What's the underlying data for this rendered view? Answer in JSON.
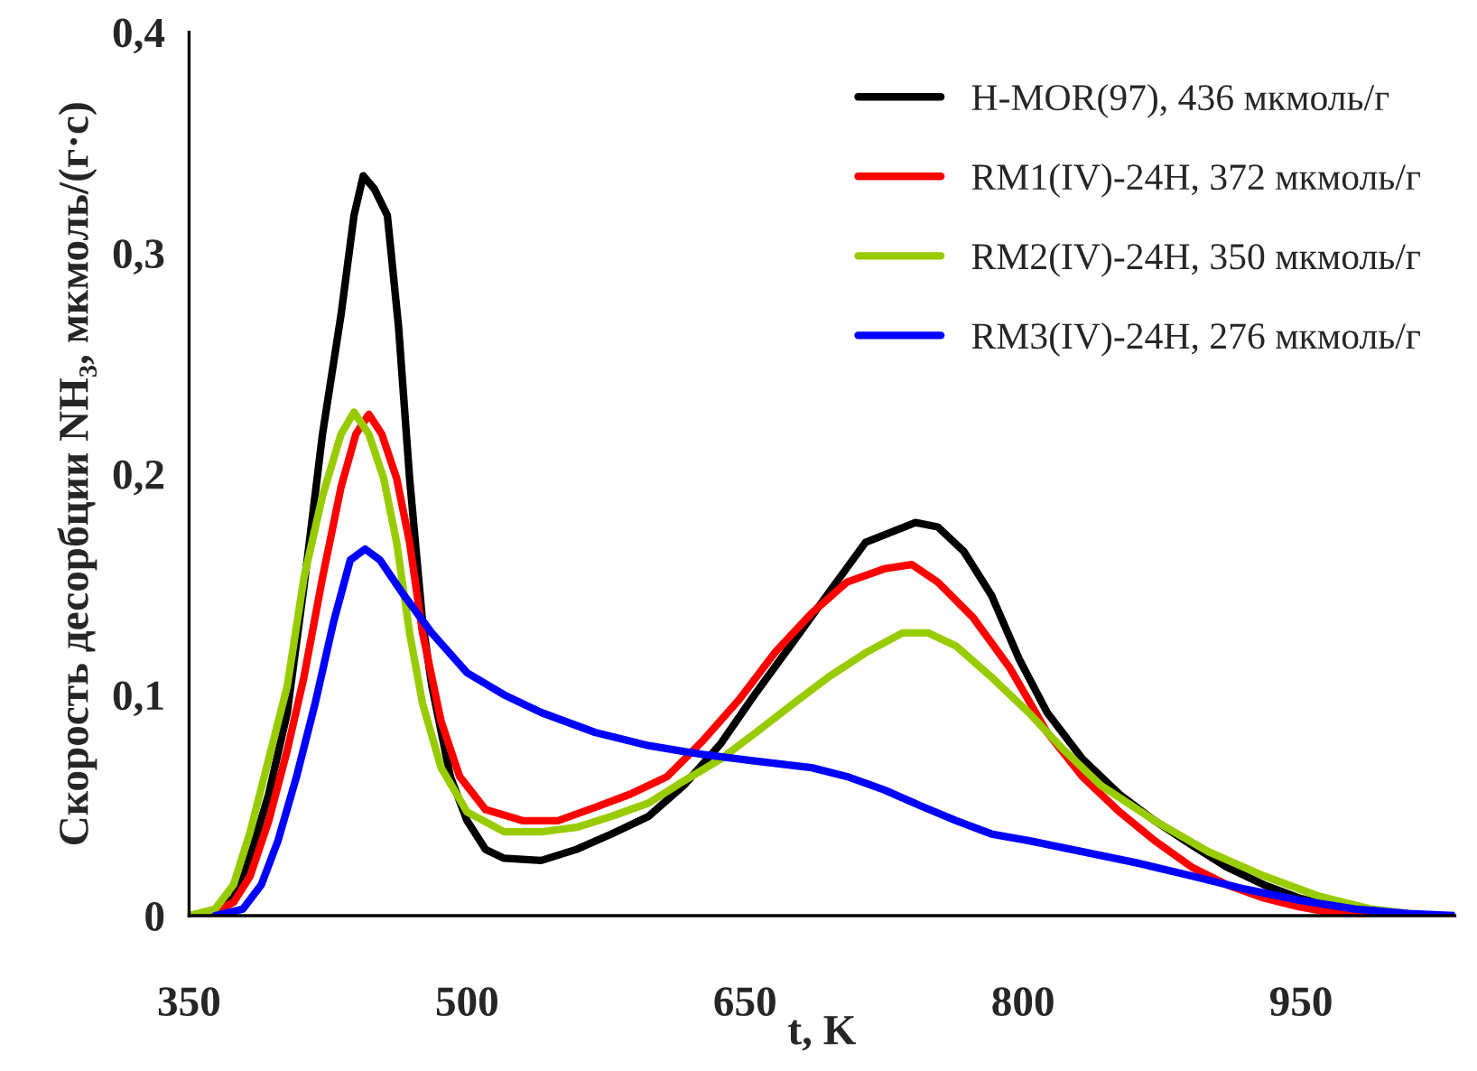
{
  "chart_data": {
    "type": "line",
    "xlabel": "t, K",
    "ylabel": "Скорость десорбции NH₃, мкмоль/(г·с)",
    "xlim": [
      350,
      1033
    ],
    "ylim": [
      0,
      0.4
    ],
    "xticks": [
      350,
      500,
      650,
      800,
      950
    ],
    "yticks": [
      {
        "value": 0,
        "label": "0"
      },
      {
        "value": 0.1,
        "label": "0,1"
      },
      {
        "value": 0.2,
        "label": "0,2"
      },
      {
        "value": 0.3,
        "label": "0,3"
      },
      {
        "value": 0.4,
        "label": "0,4"
      }
    ],
    "grid": false,
    "legend": "top right",
    "marker": "none",
    "line_style": "solid",
    "series": [
      {
        "name": "H-MOR(97), 436 мкмоль/г",
        "color": "#000000",
        "x": [
          350,
          364,
          374,
          383,
          393,
          403,
          412,
          422,
          432,
          439,
          444,
          450,
          457,
          463,
          469,
          476,
          481,
          491,
          500,
          510,
          520,
          540,
          559,
          578,
          598,
          617,
          637,
          656,
          676,
          695,
          715,
          742,
          754,
          768,
          783,
          798,
          813,
          832,
          852,
          871,
          891,
          910,
          930,
          949,
          969,
          988,
          1008
        ],
        "values": [
          0,
          0.002,
          0.008,
          0.027,
          0.055,
          0.092,
          0.149,
          0.218,
          0.272,
          0.317,
          0.335,
          0.329,
          0.317,
          0.267,
          0.198,
          0.133,
          0.104,
          0.063,
          0.043,
          0.03,
          0.026,
          0.025,
          0.03,
          0.037,
          0.045,
          0.059,
          0.078,
          0.101,
          0.124,
          0.146,
          0.169,
          0.178,
          0.176,
          0.165,
          0.145,
          0.116,
          0.092,
          0.071,
          0.055,
          0.043,
          0.032,
          0.022,
          0.014,
          0.008,
          0.004,
          0.001,
          0
        ]
      },
      {
        "name": "RM1(IV)-24H, 372 мкмоль/г",
        "color": "#ff0000",
        "x": [
          359,
          374,
          383,
          393,
          403,
          412,
          422,
          432,
          440,
          447,
          454,
          462,
          469,
          476,
          486,
          496,
          510,
          530,
          549,
          569,
          588,
          608,
          627,
          647,
          666,
          686,
          705,
          725,
          740,
          754,
          773,
          793,
          813,
          832,
          852,
          871,
          891,
          910,
          930,
          949,
          969,
          988
        ],
        "values": [
          0,
          0.006,
          0.018,
          0.043,
          0.075,
          0.108,
          0.153,
          0.194,
          0.218,
          0.227,
          0.218,
          0.198,
          0.169,
          0.128,
          0.088,
          0.063,
          0.048,
          0.043,
          0.043,
          0.049,
          0.055,
          0.063,
          0.079,
          0.098,
          0.119,
          0.137,
          0.151,
          0.157,
          0.159,
          0.151,
          0.135,
          0.112,
          0.083,
          0.063,
          0.047,
          0.034,
          0.022,
          0.014,
          0.008,
          0.004,
          0.001,
          0
        ]
      },
      {
        "name": "RM2(IV)-24H, 350 мкмоль/г",
        "color": "#99cc00",
        "x": [
          350,
          364,
          374,
          383,
          393,
          403,
          412,
          422,
          432,
          439,
          447,
          455,
          462,
          469,
          476,
          486,
          500,
          520,
          540,
          559,
          578,
          598,
          617,
          637,
          656,
          676,
          695,
          715,
          735,
          749,
          764,
          783,
          803,
          822,
          842,
          871,
          900,
          930,
          959,
          988,
          1018
        ],
        "values": [
          0,
          0.003,
          0.014,
          0.038,
          0.071,
          0.104,
          0.153,
          0.19,
          0.218,
          0.228,
          0.218,
          0.198,
          0.169,
          0.128,
          0.096,
          0.067,
          0.047,
          0.038,
          0.038,
          0.04,
          0.045,
          0.051,
          0.061,
          0.071,
          0.083,
          0.096,
          0.108,
          0.119,
          0.128,
          0.128,
          0.122,
          0.108,
          0.092,
          0.075,
          0.059,
          0.043,
          0.029,
          0.018,
          0.009,
          0.003,
          0
        ]
      },
      {
        "name": "RM3(IV)-24H, 276 мкмоль/г",
        "color": "#0000ff",
        "x": [
          364,
          379,
          389,
          398,
          408,
          418,
          428,
          437,
          445,
          453,
          466,
          481,
          500,
          520,
          540,
          569,
          598,
          627,
          656,
          686,
          705,
          725,
          744,
          764,
          783,
          803,
          832,
          861,
          891,
          920,
          949,
          979,
          1008,
          1033
        ],
        "values": [
          0,
          0.003,
          0.014,
          0.034,
          0.063,
          0.096,
          0.133,
          0.161,
          0.166,
          0.161,
          0.145,
          0.128,
          0.11,
          0.1,
          0.092,
          0.083,
          0.077,
          0.073,
          0.07,
          0.067,
          0.063,
          0.057,
          0.05,
          0.043,
          0.037,
          0.034,
          0.029,
          0.024,
          0.018,
          0.012,
          0.007,
          0.003,
          0.001,
          0
        ]
      }
    ]
  }
}
